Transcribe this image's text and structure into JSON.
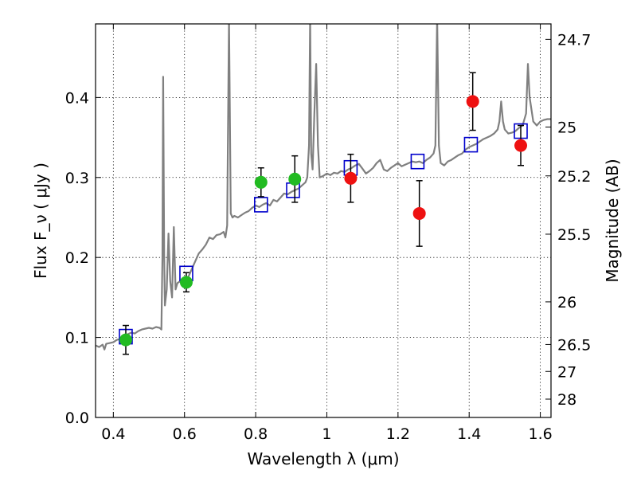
{
  "chart_data": {
    "type": "scatter",
    "title": "",
    "xlabel": "Wavelength  λ (μm)",
    "ylabel": "Flux  F_ν  ( μJy )",
    "y2label": "Magnitude (AB)",
    "xlim": [
      0.35,
      1.63
    ],
    "ylim": [
      0.0,
      0.492
    ],
    "grid": true,
    "x_ticks": [
      {
        "value": 0.4,
        "label": "0.4"
      },
      {
        "value": 0.6,
        "label": "0.6"
      },
      {
        "value": 0.8,
        "label": "0.8"
      },
      {
        "value": 1.0,
        "label": "1"
      },
      {
        "value": 1.2,
        "label": "1.2"
      },
      {
        "value": 1.4,
        "label": "1.4"
      },
      {
        "value": 1.6,
        "label": "1.6"
      }
    ],
    "y_ticks": [
      {
        "value": 0.0,
        "label": "0.0"
      },
      {
        "value": 0.1,
        "label": "0.1"
      },
      {
        "value": 0.2,
        "label": "0.2"
      },
      {
        "value": 0.3,
        "label": "0.3"
      },
      {
        "value": 0.4,
        "label": "0.4"
      }
    ],
    "y2_ticks": [
      {
        "flux": 0.4727,
        "label": "24.7"
      },
      {
        "flux": 0.3631,
        "label": "25"
      },
      {
        "flux": 0.302,
        "label": "25.2"
      },
      {
        "flux": 0.2291,
        "label": "25.5"
      },
      {
        "flux": 0.1445,
        "label": "26"
      },
      {
        "flux": 0.0912,
        "label": "26.5"
      },
      {
        "flux": 0.0575,
        "label": "27"
      },
      {
        "flux": 0.0229,
        "label": "28"
      }
    ],
    "colors": {
      "spectrum": "#808080",
      "model": "#0000cc",
      "optical": "#22bb22",
      "nir": "#ee1111",
      "errorbar": "#000000"
    },
    "series": [
      {
        "kind": "line",
        "points": [
          [
            0.35,
            0.09
          ],
          [
            0.36,
            0.088
          ],
          [
            0.37,
            0.091
          ],
          [
            0.375,
            0.085
          ],
          [
            0.38,
            0.092
          ],
          [
            0.39,
            0.093
          ],
          [
            0.4,
            0.094
          ],
          [
            0.41,
            0.097
          ],
          [
            0.42,
            0.098
          ],
          [
            0.43,
            0.102
          ],
          [
            0.44,
            0.104
          ],
          [
            0.45,
            0.106
          ],
          [
            0.46,
            0.105
          ],
          [
            0.47,
            0.108
          ],
          [
            0.48,
            0.11
          ],
          [
            0.49,
            0.111
          ],
          [
            0.5,
            0.112
          ],
          [
            0.51,
            0.111
          ],
          [
            0.52,
            0.113
          ],
          [
            0.53,
            0.112
          ],
          [
            0.535,
            0.11
          ],
          [
            0.538,
            0.2
          ],
          [
            0.54,
            0.426
          ],
          [
            0.543,
            0.2
          ],
          [
            0.545,
            0.14
          ],
          [
            0.55,
            0.16
          ],
          [
            0.555,
            0.23
          ],
          [
            0.56,
            0.17
          ],
          [
            0.565,
            0.15
          ],
          [
            0.57,
            0.238
          ],
          [
            0.575,
            0.16
          ],
          [
            0.58,
            0.168
          ],
          [
            0.59,
            0.171
          ],
          [
            0.6,
            0.172
          ],
          [
            0.61,
            0.175
          ],
          [
            0.62,
            0.185
          ],
          [
            0.63,
            0.195
          ],
          [
            0.64,
            0.205
          ],
          [
            0.65,
            0.21
          ],
          [
            0.66,
            0.216
          ],
          [
            0.67,
            0.225
          ],
          [
            0.68,
            0.223
          ],
          [
            0.69,
            0.228
          ],
          [
            0.7,
            0.229
          ],
          [
            0.71,
            0.232
          ],
          [
            0.715,
            0.225
          ],
          [
            0.72,
            0.24
          ],
          [
            0.725,
            0.5
          ],
          [
            0.73,
            0.255
          ],
          [
            0.735,
            0.25
          ],
          [
            0.74,
            0.252
          ],
          [
            0.75,
            0.25
          ],
          [
            0.76,
            0.253
          ],
          [
            0.77,
            0.256
          ],
          [
            0.78,
            0.258
          ],
          [
            0.79,
            0.262
          ],
          [
            0.8,
            0.265
          ],
          [
            0.81,
            0.263
          ],
          [
            0.82,
            0.266
          ],
          [
            0.83,
            0.268
          ],
          [
            0.84,
            0.265
          ],
          [
            0.85,
            0.272
          ],
          [
            0.86,
            0.27
          ],
          [
            0.87,
            0.275
          ],
          [
            0.88,
            0.28
          ],
          [
            0.89,
            0.279
          ],
          [
            0.9,
            0.282
          ],
          [
            0.91,
            0.284
          ],
          [
            0.92,
            0.286
          ],
          [
            0.93,
            0.29
          ],
          [
            0.94,
            0.294
          ],
          [
            0.945,
            0.3
          ],
          [
            0.95,
            0.34
          ],
          [
            0.953,
            0.5
          ],
          [
            0.956,
            0.33
          ],
          [
            0.96,
            0.31
          ],
          [
            0.965,
            0.38
          ],
          [
            0.97,
            0.442
          ],
          [
            0.975,
            0.34
          ],
          [
            0.98,
            0.3
          ],
          [
            0.99,
            0.302
          ],
          [
            1.0,
            0.305
          ],
          [
            1.01,
            0.303
          ],
          [
            1.02,
            0.306
          ],
          [
            1.03,
            0.305
          ],
          [
            1.04,
            0.308
          ],
          [
            1.05,
            0.307
          ],
          [
            1.06,
            0.31
          ],
          [
            1.07,
            0.312
          ],
          [
            1.08,
            0.315
          ],
          [
            1.09,
            0.317
          ],
          [
            1.1,
            0.311
          ],
          [
            1.11,
            0.305
          ],
          [
            1.12,
            0.308
          ],
          [
            1.13,
            0.312
          ],
          [
            1.14,
            0.318
          ],
          [
            1.15,
            0.322
          ],
          [
            1.16,
            0.31
          ],
          [
            1.17,
            0.308
          ],
          [
            1.18,
            0.312
          ],
          [
            1.19,
            0.315
          ],
          [
            1.2,
            0.318
          ],
          [
            1.21,
            0.314
          ],
          [
            1.22,
            0.316
          ],
          [
            1.23,
            0.318
          ],
          [
            1.24,
            0.32
          ],
          [
            1.25,
            0.319
          ],
          [
            1.26,
            0.32
          ],
          [
            1.27,
            0.318
          ],
          [
            1.28,
            0.322
          ],
          [
            1.29,
            0.325
          ],
          [
            1.3,
            0.33
          ],
          [
            1.305,
            0.34
          ],
          [
            1.31,
            0.5
          ],
          [
            1.315,
            0.34
          ],
          [
            1.32,
            0.318
          ],
          [
            1.33,
            0.315
          ],
          [
            1.34,
            0.32
          ],
          [
            1.35,
            0.322
          ],
          [
            1.36,
            0.325
          ],
          [
            1.37,
            0.328
          ],
          [
            1.38,
            0.33
          ],
          [
            1.39,
            0.335
          ],
          [
            1.4,
            0.338
          ],
          [
            1.41,
            0.34
          ],
          [
            1.42,
            0.342
          ],
          [
            1.43,
            0.345
          ],
          [
            1.44,
            0.348
          ],
          [
            1.45,
            0.35
          ],
          [
            1.46,
            0.352
          ],
          [
            1.47,
            0.355
          ],
          [
            1.48,
            0.36
          ],
          [
            1.485,
            0.37
          ],
          [
            1.49,
            0.395
          ],
          [
            1.495,
            0.37
          ],
          [
            1.5,
            0.36
          ],
          [
            1.51,
            0.355
          ],
          [
            1.52,
            0.356
          ],
          [
            1.53,
            0.358
          ],
          [
            1.54,
            0.362
          ],
          [
            1.55,
            0.365
          ],
          [
            1.56,
            0.38
          ],
          [
            1.565,
            0.442
          ],
          [
            1.57,
            0.4
          ],
          [
            1.58,
            0.37
          ],
          [
            1.59,
            0.365
          ],
          [
            1.6,
            0.37
          ],
          [
            1.61,
            0.372
          ],
          [
            1.62,
            0.373
          ],
          [
            1.63,
            0.373
          ]
        ]
      },
      {
        "kind": "open-square",
        "points": [
          [
            0.435,
            0.101
          ],
          [
            0.605,
            0.18
          ],
          [
            0.815,
            0.266
          ],
          [
            0.905,
            0.284
          ],
          [
            1.067,
            0.312
          ],
          [
            1.255,
            0.32
          ],
          [
            1.405,
            0.341
          ],
          [
            1.545,
            0.358
          ]
        ]
      },
      {
        "kind": "filled-circle",
        "color_key": "optical",
        "points": [
          {
            "x": 0.435,
            "y": 0.097,
            "err": 0.018
          },
          {
            "x": 0.605,
            "y": 0.169,
            "err": 0.012
          },
          {
            "x": 0.815,
            "y": 0.294,
            "err": 0.018
          },
          {
            "x": 0.91,
            "y": 0.298,
            "err": 0.029
          }
        ]
      },
      {
        "kind": "filled-circle",
        "color_key": "nir",
        "points": [
          {
            "x": 1.067,
            "y": 0.299,
            "err": 0.03
          },
          {
            "x": 1.26,
            "y": 0.255,
            "err": 0.041
          },
          {
            "x": 1.41,
            "y": 0.395,
            "err": 0.036
          },
          {
            "x": 1.545,
            "y": 0.34,
            "err": 0.025
          }
        ]
      }
    ]
  }
}
